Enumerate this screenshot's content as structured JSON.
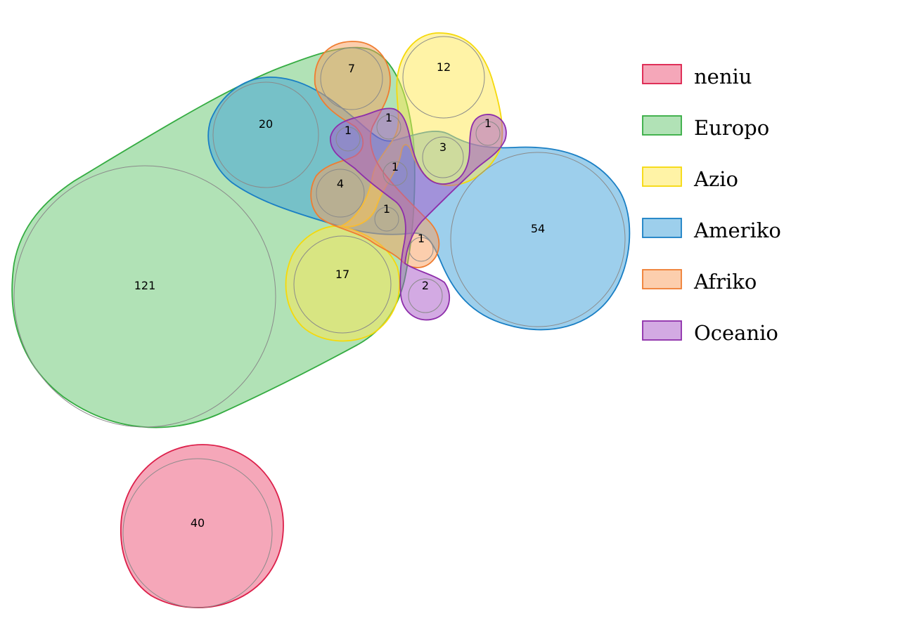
{
  "sets": [
    {
      "key": "neniu",
      "label": "neniu",
      "fill": "#ec4f73",
      "stroke": "#dc1f4a"
    },
    {
      "key": "europo",
      "label": "Europo",
      "fill": "#63c66d",
      "stroke": "#35ac42"
    },
    {
      "key": "azio",
      "label": "Azio",
      "fill": "#ffe84d",
      "stroke": "#f5d90b"
    },
    {
      "key": "ameriko",
      "label": "Ameriko",
      "fill": "#3b9fd9",
      "stroke": "#1a7fc4"
    },
    {
      "key": "afriko",
      "label": "Afriko",
      "fill": "#f99d5b",
      "stroke": "#ef7d31"
    },
    {
      "key": "oceanio",
      "label": "Oceanio",
      "fill": "#a856c8",
      "stroke": "#8d2eaa"
    }
  ],
  "bubbles": [
    {
      "id": "europo-only",
      "value": "121",
      "sets": [
        "europo"
      ]
    },
    {
      "id": "neniu-only",
      "value": "40",
      "sets": [
        "neniu"
      ]
    },
    {
      "id": "ameriko-only",
      "value": "54",
      "sets": [
        "ameriko"
      ]
    },
    {
      "id": "europo-ameriko",
      "value": "20",
      "sets": [
        "europo",
        "ameriko"
      ]
    },
    {
      "id": "europo-azio",
      "value": "17",
      "sets": [
        "europo",
        "azio"
      ]
    },
    {
      "id": "azio-only",
      "value": "12",
      "sets": [
        "azio"
      ]
    },
    {
      "id": "europo-afriko",
      "value": "7",
      "sets": [
        "europo",
        "afriko"
      ]
    },
    {
      "id": "europo-ameriko-afriko",
      "value": "4",
      "sets": [
        "europo",
        "ameriko",
        "afriko"
      ]
    },
    {
      "id": "azio-ameriko",
      "value": "3",
      "sets": [
        "azio",
        "ameriko"
      ]
    },
    {
      "id": "ameriko-oceanio",
      "value": "2",
      "sets": [
        "ameriko",
        "oceanio"
      ]
    },
    {
      "id": "b1-a",
      "value": "1",
      "sets": [
        "europo",
        "ameriko",
        "oceanio"
      ]
    },
    {
      "id": "b1-b",
      "value": "1",
      "sets": [
        "europo",
        "azio",
        "ameriko",
        "afriko",
        "oceanio"
      ]
    },
    {
      "id": "b1-c",
      "value": "1",
      "sets": [
        "europo",
        "azio",
        "ameriko",
        "afriko",
        "oceanio"
      ]
    },
    {
      "id": "b1-d",
      "value": "1",
      "sets": [
        "europo",
        "azio",
        "ameriko",
        "afriko"
      ]
    },
    {
      "id": "b1-e",
      "value": "1",
      "sets": [
        "azio",
        "ameriko",
        "oceanio"
      ]
    },
    {
      "id": "b1-f",
      "value": "1",
      "sets": [
        "ameriko",
        "afriko"
      ]
    }
  ]
}
